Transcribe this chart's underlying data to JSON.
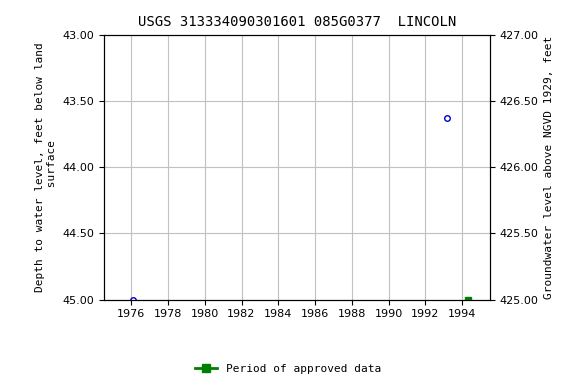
{
  "title": "USGS 313334090301601 085G0377  LINCOLN",
  "left_ylabel": "Depth to water level, feet below land\n surface",
  "right_ylabel": "Groundwater level above NGVD 1929, feet",
  "ylim_left_top": 43.0,
  "ylim_left_bottom": 45.0,
  "ylim_right_top": 427.0,
  "ylim_right_bottom": 425.0,
  "xlim": [
    1974.5,
    1995.5
  ],
  "xticks": [
    1976,
    1978,
    1980,
    1982,
    1984,
    1986,
    1988,
    1990,
    1992,
    1994
  ],
  "yticks_left": [
    43.0,
    43.5,
    44.0,
    44.5,
    45.0
  ],
  "yticks_right": [
    427.0,
    426.5,
    426.0,
    425.5,
    425.0
  ],
  "data_points_x": [
    1976.1,
    1993.2
  ],
  "data_points_y": [
    45.0,
    43.63
  ],
  "approved_bar_x": 1994.3,
  "approved_bar_y": 45.0,
  "point_color": "#0000cc",
  "approved_color": "#008000",
  "grid_color": "#c0c0c0",
  "bg_color": "#ffffff",
  "title_fontsize": 10,
  "label_fontsize": 8,
  "tick_fontsize": 8,
  "legend_fontsize": 8
}
